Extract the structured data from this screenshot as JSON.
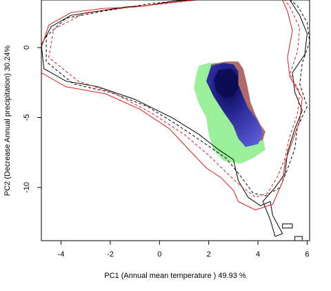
{
  "chart_data": {
    "type": "scatter",
    "xlabel": "PC1 (Annual mean temperature ) 49.93 %",
    "ylabel": "PC2 (Decrease Annual precipitation) 30.24%",
    "xlim": [
      -4.8,
      6.1
    ],
    "ylim": [
      -13.8,
      3.4
    ],
    "x_ticks": [
      -4,
      -2,
      0,
      2,
      4,
      6
    ],
    "y_ticks": [
      0,
      -5,
      -10
    ],
    "grid": false,
    "colors": {
      "green": "#99f099",
      "blue": "#3a3ab0",
      "blue_dark": "#0a0a50",
      "red_brown": "#a85a5a",
      "red": "#e01a1a",
      "black": "#000000"
    },
    "series": [
      {
        "style": "black-solid",
        "points": [
          [
            1.2,
            3.4
          ],
          [
            0.5,
            3.3
          ],
          [
            -0.5,
            3.0
          ],
          [
            -1.4,
            2.9
          ],
          [
            -2.5,
            2.6
          ],
          [
            -3.6,
            2.3
          ],
          [
            -4.4,
            1.5
          ],
          [
            -4.8,
            0.2
          ],
          [
            -4.7,
            -1.5
          ],
          [
            -3.8,
            -2.4
          ],
          [
            -2.5,
            -2.8
          ],
          [
            -1.0,
            -3.7
          ],
          [
            0.5,
            -5.0
          ],
          [
            1.6,
            -6.2
          ],
          [
            2.4,
            -7.3
          ],
          [
            3.0,
            -8.0
          ],
          [
            3.2,
            -9.5
          ],
          [
            3.6,
            -10.7
          ],
          [
            4.1,
            -11.3
          ],
          [
            4.5,
            -11.0
          ],
          [
            4.6,
            -12.0
          ],
          [
            5.0,
            -13.3
          ],
          [
            4.7,
            -13.5
          ],
          [
            4.5,
            -12.3
          ],
          [
            4.2,
            -11.0
          ],
          [
            4.7,
            -10.0
          ],
          [
            5.1,
            -9.0
          ],
          [
            5.2,
            -7.5
          ],
          [
            5.5,
            -5.8
          ],
          [
            5.8,
            -4.5
          ],
          [
            5.5,
            -3.2
          ],
          [
            5.4,
            -1.8
          ],
          [
            5.9,
            -0.5
          ],
          [
            6.0,
            1.0
          ],
          [
            5.7,
            2.3
          ],
          [
            5.3,
            3.4
          ]
        ]
      },
      {
        "style": "black-dashed",
        "points": [
          [
            1.0,
            3.4
          ],
          [
            -0.5,
            3.1
          ],
          [
            -2.3,
            2.6
          ],
          [
            -3.8,
            2.1
          ],
          [
            -4.6,
            0.8
          ],
          [
            -4.6,
            -1.0
          ],
          [
            -3.5,
            -2.6
          ],
          [
            -2.0,
            -3.2
          ],
          [
            -0.5,
            -4.2
          ],
          [
            0.7,
            -5.5
          ],
          [
            1.8,
            -6.8
          ],
          [
            2.7,
            -7.9
          ],
          [
            3.3,
            -9.2
          ],
          [
            3.8,
            -10.4
          ],
          [
            4.3,
            -10.6
          ],
          [
            4.9,
            -10.0
          ],
          [
            5.2,
            -8.7
          ],
          [
            5.5,
            -7.2
          ],
          [
            5.6,
            -5.7
          ],
          [
            6.0,
            -4.2
          ],
          [
            5.7,
            -2.6
          ],
          [
            5.8,
            -1.1
          ],
          [
            6.1,
            0.4
          ],
          [
            6.0,
            1.8
          ],
          [
            5.6,
            3.0
          ],
          [
            5.3,
            3.4
          ]
        ]
      },
      {
        "style": "red-solid",
        "points": [
          [
            1.5,
            3.4
          ],
          [
            0.3,
            3.2
          ],
          [
            -1.0,
            2.9
          ],
          [
            -2.3,
            2.8
          ],
          [
            -3.6,
            2.5
          ],
          [
            -4.5,
            1.6
          ],
          [
            -4.8,
            0.0
          ],
          [
            -4.8,
            -1.8
          ],
          [
            -3.8,
            -2.8
          ],
          [
            -2.2,
            -3.3
          ],
          [
            -0.8,
            -4.4
          ],
          [
            0.4,
            -5.8
          ],
          [
            1.2,
            -7.3
          ],
          [
            1.9,
            -8.6
          ],
          [
            2.5,
            -9.3
          ],
          [
            3.0,
            -10.2
          ],
          [
            3.2,
            -11.0
          ],
          [
            3.9,
            -11.6
          ],
          [
            4.6,
            -11.2
          ],
          [
            5.0,
            -9.6
          ],
          [
            5.1,
            -8.2
          ],
          [
            5.4,
            -6.7
          ],
          [
            5.7,
            -5.2
          ],
          [
            5.8,
            -3.6
          ],
          [
            5.3,
            -2.1
          ],
          [
            5.2,
            -0.7
          ],
          [
            5.4,
            1.2
          ],
          [
            5.2,
            2.6
          ],
          [
            5.0,
            3.4
          ]
        ]
      },
      {
        "style": "red-dashed",
        "points": [
          [
            1.5,
            3.4
          ],
          [
            0.0,
            3.1
          ],
          [
            -1.6,
            2.8
          ],
          [
            -3.0,
            2.5
          ],
          [
            -4.3,
            1.3
          ],
          [
            -4.5,
            -0.7
          ],
          [
            -3.3,
            -2.4
          ],
          [
            -1.8,
            -3.3
          ],
          [
            -0.3,
            -4.7
          ],
          [
            1.0,
            -6.2
          ],
          [
            2.0,
            -7.7
          ],
          [
            2.7,
            -8.9
          ],
          [
            3.3,
            -9.9
          ],
          [
            3.9,
            -10.7
          ],
          [
            4.4,
            -10.4
          ],
          [
            4.8,
            -9.2
          ],
          [
            5.1,
            -7.9
          ],
          [
            5.3,
            -6.3
          ],
          [
            5.6,
            -4.8
          ],
          [
            5.7,
            -3.2
          ],
          [
            5.3,
            -1.9
          ],
          [
            5.6,
            -0.3
          ],
          [
            5.7,
            1.4
          ],
          [
            5.3,
            2.9
          ],
          [
            5.1,
            3.4
          ]
        ]
      }
    ],
    "density_regions": [
      {
        "color": "green",
        "points": [
          [
            1.6,
            -1.3
          ],
          [
            2.0,
            -1.1
          ],
          [
            2.4,
            -1.1
          ],
          [
            2.6,
            -1.6
          ],
          [
            2.5,
            -2.6
          ],
          [
            2.7,
            -3.5
          ],
          [
            3.1,
            -4.3
          ],
          [
            3.6,
            -5.0
          ],
          [
            4.0,
            -5.6
          ],
          [
            4.2,
            -6.4
          ],
          [
            4.3,
            -7.3
          ],
          [
            3.8,
            -7.9
          ],
          [
            3.3,
            -8.3
          ],
          [
            2.6,
            -8.1
          ],
          [
            2.2,
            -7.3
          ],
          [
            2.0,
            -6.2
          ],
          [
            1.9,
            -5.0
          ],
          [
            1.6,
            -4.0
          ],
          [
            1.4,
            -2.9
          ],
          [
            1.5,
            -1.9
          ]
        ]
      },
      {
        "color": "red_brown",
        "points": [
          [
            2.1,
            -1.2
          ],
          [
            2.7,
            -1.0
          ],
          [
            3.2,
            -1.0
          ],
          [
            3.4,
            -1.5
          ],
          [
            3.5,
            -2.2
          ],
          [
            3.6,
            -3.0
          ],
          [
            3.7,
            -3.9
          ],
          [
            3.9,
            -4.8
          ],
          [
            4.1,
            -5.5
          ],
          [
            4.3,
            -6.0
          ],
          [
            4.2,
            -6.6
          ],
          [
            3.9,
            -6.8
          ],
          [
            3.6,
            -6.5
          ],
          [
            3.2,
            -5.8
          ],
          [
            2.7,
            -4.6
          ],
          [
            2.3,
            -3.3
          ],
          [
            2.0,
            -2.3
          ]
        ]
      },
      {
        "color": "blue",
        "points": [
          [
            2.1,
            -1.3
          ],
          [
            2.6,
            -1.1
          ],
          [
            3.0,
            -1.2
          ],
          [
            3.2,
            -1.7
          ],
          [
            3.2,
            -2.6
          ],
          [
            3.4,
            -3.5
          ],
          [
            3.6,
            -4.3
          ],
          [
            3.9,
            -5.0
          ],
          [
            4.1,
            -5.6
          ],
          [
            4.2,
            -6.2
          ],
          [
            4.0,
            -6.9
          ],
          [
            3.5,
            -7.1
          ],
          [
            3.2,
            -6.5
          ],
          [
            3.0,
            -5.6
          ],
          [
            2.6,
            -4.6
          ],
          [
            2.2,
            -3.5
          ],
          [
            1.9,
            -2.4
          ]
        ]
      },
      {
        "color": "blue_dark",
        "points": [
          [
            2.4,
            -1.6
          ],
          [
            2.9,
            -1.5
          ],
          [
            3.2,
            -2.0
          ],
          [
            3.2,
            -2.9
          ],
          [
            3.0,
            -3.5
          ],
          [
            2.6,
            -3.6
          ],
          [
            2.3,
            -3.1
          ],
          [
            2.2,
            -2.3
          ]
        ]
      }
    ]
  }
}
